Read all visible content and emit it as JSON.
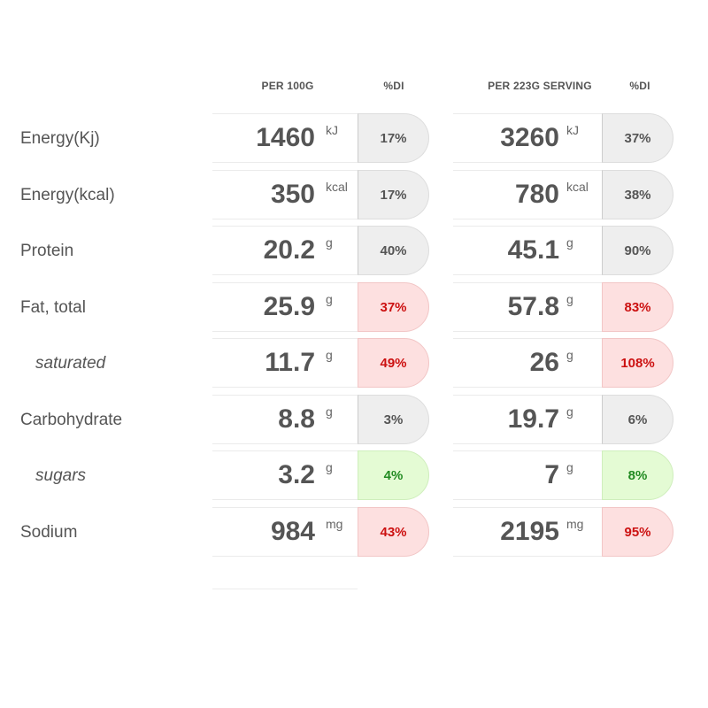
{
  "headers": {
    "per100": "PER 100G",
    "di1": "%DI",
    "perServing": "PER 223G SERVING",
    "di2": "%DI"
  },
  "rows": [
    {
      "label": "Energy(Kj)",
      "sub": false,
      "per100": "1460",
      "unit": "kJ",
      "di100": "17%",
      "di100_level": "neutral",
      "serving": "3260",
      "di_serving": "37%",
      "di_serving_level": "neutral"
    },
    {
      "label": "Energy(kcal)",
      "sub": false,
      "per100": "350",
      "unit": "kcal",
      "di100": "17%",
      "di100_level": "neutral",
      "serving": "780",
      "di_serving": "38%",
      "di_serving_level": "neutral"
    },
    {
      "label": "Protein",
      "sub": false,
      "per100": "20.2",
      "unit": "g",
      "di100": "40%",
      "di100_level": "neutral",
      "serving": "45.1",
      "di_serving": "90%",
      "di_serving_level": "neutral"
    },
    {
      "label": "Fat, total",
      "sub": false,
      "per100": "25.9",
      "unit": "g",
      "di100": "37%",
      "di100_level": "high",
      "serving": "57.8",
      "di_serving": "83%",
      "di_serving_level": "high"
    },
    {
      "label": "saturated",
      "sub": true,
      "per100": "11.7",
      "unit": "g",
      "di100": "49%",
      "di100_level": "high",
      "serving": "26",
      "di_serving": "108%",
      "di_serving_level": "high"
    },
    {
      "label": "Carbohydrate",
      "sub": false,
      "per100": "8.8",
      "unit": "g",
      "di100": "3%",
      "di100_level": "neutral",
      "serving": "19.7",
      "di_serving": "6%",
      "di_serving_level": "neutral"
    },
    {
      "label": "sugars",
      "sub": true,
      "per100": "3.2",
      "unit": "g",
      "di100": "4%",
      "di100_level": "low",
      "serving": "7",
      "di_serving": "8%",
      "di_serving_level": "low"
    },
    {
      "label": "Sodium",
      "sub": false,
      "per100": "984",
      "unit": "mg",
      "di100": "43%",
      "di100_level": "high",
      "serving": "2195",
      "di_serving": "95%",
      "di_serving_level": "high"
    }
  ],
  "colors": {
    "neutral_bg": "#eeeeee",
    "high_bg": "#fde0e0",
    "high_text": "#cc1111",
    "low_bg": "#e4fbd4",
    "low_text": "#228b22"
  }
}
